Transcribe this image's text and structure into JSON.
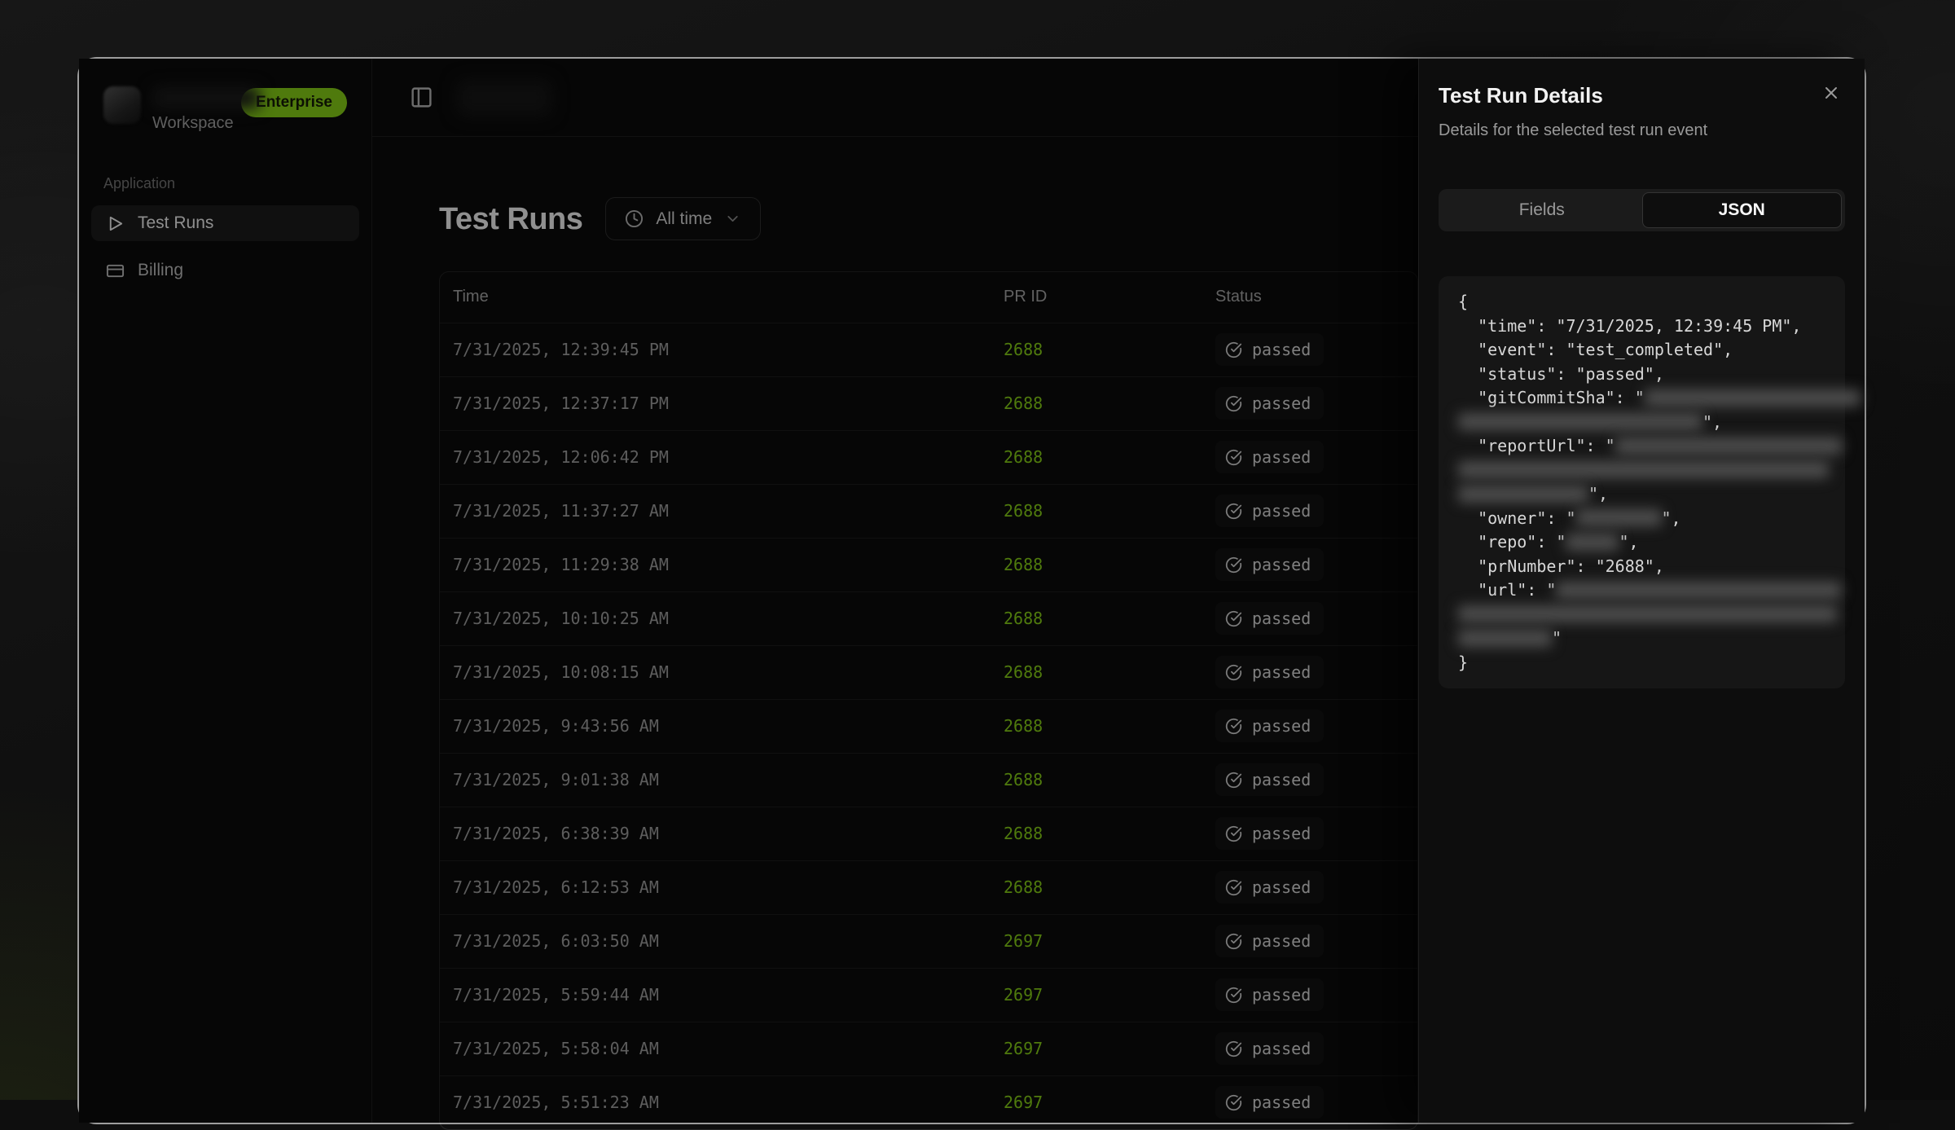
{
  "workspace": {
    "label": "Workspace",
    "plan_badge": "Enterprise"
  },
  "sidebar": {
    "section_label": "Application",
    "items": [
      {
        "label": "Test Runs",
        "icon": "play-icon",
        "active": true
      },
      {
        "label": "Billing",
        "icon": "credit-card-icon",
        "active": false
      }
    ]
  },
  "main": {
    "title": "Test Runs",
    "time_filter_label": "All time",
    "table": {
      "columns": [
        "Time",
        "PR ID",
        "Status"
      ],
      "rows": [
        {
          "time": "7/31/2025, 12:39:45 PM",
          "pr_id": "2688",
          "status": "passed"
        },
        {
          "time": "7/31/2025, 12:37:17 PM",
          "pr_id": "2688",
          "status": "passed"
        },
        {
          "time": "7/31/2025, 12:06:42 PM",
          "pr_id": "2688",
          "status": "passed"
        },
        {
          "time": "7/31/2025, 11:37:27 AM",
          "pr_id": "2688",
          "status": "passed"
        },
        {
          "time": "7/31/2025, 11:29:38 AM",
          "pr_id": "2688",
          "status": "passed"
        },
        {
          "time": "7/31/2025, 10:10:25 AM",
          "pr_id": "2688",
          "status": "passed"
        },
        {
          "time": "7/31/2025, 10:08:15 AM",
          "pr_id": "2688",
          "status": "passed"
        },
        {
          "time": "7/31/2025, 9:43:56 AM",
          "pr_id": "2688",
          "status": "passed"
        },
        {
          "time": "7/31/2025, 9:01:38 AM",
          "pr_id": "2688",
          "status": "passed"
        },
        {
          "time": "7/31/2025, 6:38:39 AM",
          "pr_id": "2688",
          "status": "passed"
        },
        {
          "time": "7/31/2025, 6:12:53 AM",
          "pr_id": "2688",
          "status": "passed"
        },
        {
          "time": "7/31/2025, 6:03:50 AM",
          "pr_id": "2697",
          "status": "passed"
        },
        {
          "time": "7/31/2025, 5:59:44 AM",
          "pr_id": "2697",
          "status": "passed"
        },
        {
          "time": "7/31/2025, 5:58:04 AM",
          "pr_id": "2697",
          "status": "passed"
        },
        {
          "time": "7/31/2025, 5:51:23 AM",
          "pr_id": "2697",
          "status": "passed"
        }
      ]
    }
  },
  "details_panel": {
    "title": "Test Run Details",
    "subtitle": "Details for the selected test run event",
    "tabs": [
      {
        "label": "Fields",
        "active": false
      },
      {
        "label": "JSON",
        "active": true
      }
    ],
    "json_lines": [
      [
        {
          "t": "{"
        }
      ],
      [
        {
          "t": "  \"time\": \"7/31/2025, 12:39:45 PM\","
        }
      ],
      [
        {
          "t": "  \"event\": \"test_completed\","
        }
      ],
      [
        {
          "t": "  \"status\": \"passed\","
        }
      ],
      [
        {
          "t": "  \"gitCommitSha\": \""
        },
        {
          "r": 265
        }
      ],
      [
        {
          "r": 300
        },
        {
          "t": "\","
        }
      ],
      [
        {
          "t": "  \"reportUrl\": \""
        },
        {
          "r": 278
        }
      ],
      [
        {
          "r": 455
        }
      ],
      [
        {
          "r": 160
        },
        {
          "t": "\","
        }
      ],
      [
        {
          "t": "  \"owner\": \""
        },
        {
          "r": 105
        },
        {
          "t": "\","
        }
      ],
      [
        {
          "t": "  \"repo\": \""
        },
        {
          "r": 65
        },
        {
          "t": "\","
        }
      ],
      [
        {
          "t": "  \"prNumber\": \"2688\","
        }
      ],
      [
        {
          "t": "  \"url\": \""
        },
        {
          "r": 350
        }
      ],
      [
        {
          "r": 465
        }
      ],
      [
        {
          "r": 115
        },
        {
          "t": "\""
        }
      ],
      [
        {
          "t": "}"
        }
      ]
    ]
  },
  "colors": {
    "accent_green": "#84cc16",
    "badge_bg": "#84cc16",
    "badge_text": "#141b05",
    "window_bg": "#0a0a0a",
    "sheet_bg": "#0d0d0d",
    "code_bg": "#161616"
  }
}
